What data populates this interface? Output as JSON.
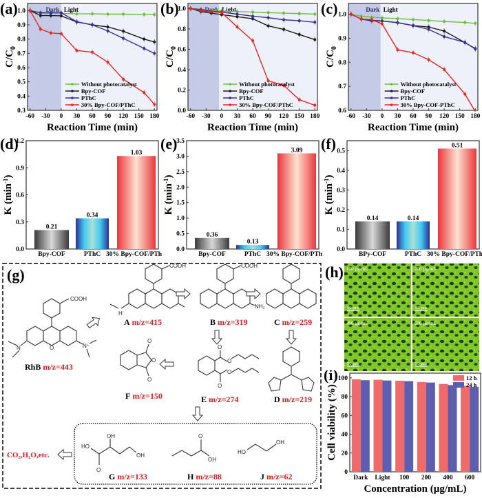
{
  "figure": {
    "panels": [
      "(a)",
      "(b)",
      "(c)",
      "(d)",
      "(e)",
      "(f)",
      "(g)",
      "(h)",
      "(i)"
    ]
  },
  "chart_data": [
    {
      "id": "a",
      "type": "line",
      "panel_label": "(a)",
      "xlabel": "Reaction Time (min)",
      "ylabel": "C/C0",
      "xlim": [
        -65,
        185
      ],
      "ylim": [
        0.3,
        1.05
      ],
      "xticks": [
        -60,
        -30,
        0,
        30,
        60,
        90,
        120,
        150,
        180
      ],
      "yticks": [
        0.3,
        0.4,
        0.5,
        0.6,
        0.7,
        0.8,
        0.9,
        1.0
      ],
      "ytick_decimals": 1,
      "dark_region": [
        -65,
        0
      ],
      "region_labels": [
        "Dark",
        "Light"
      ],
      "legend_position": "bottom-right",
      "x": [
        -60,
        -40,
        -20,
        0,
        30,
        60,
        90,
        120,
        160,
        180
      ],
      "series": [
        {
          "name": "Without photocatalyst",
          "color": "#6cbf3c",
          "values": [
            1.0,
            0.98,
            0.98,
            0.98,
            0.977,
            0.977,
            0.975,
            0.975,
            0.973,
            0.972
          ]
        },
        {
          "name": "Bpy-COF",
          "color": "#1a1a1a",
          "values": [
            1.0,
            0.965,
            0.965,
            0.963,
            0.92,
            0.9,
            0.885,
            0.855,
            0.8,
            0.78
          ]
        },
        {
          "name": "PThC",
          "color": "#3b2a9a",
          "values": [
            1.0,
            0.985,
            0.985,
            0.985,
            0.922,
            0.9,
            0.857,
            0.805,
            0.735,
            0.7
          ]
        },
        {
          "name": "30% Bpy-COF/PThC",
          "color": "#e8251f",
          "values": [
            1.0,
            0.87,
            0.843,
            0.838,
            0.72,
            0.708,
            0.638,
            0.518,
            0.425,
            0.342
          ]
        }
      ]
    },
    {
      "id": "b",
      "type": "line",
      "panel_label": "(b)",
      "xlabel": "Reaction Time (min)",
      "ylabel": "C/C0",
      "xlim": [
        -65,
        185
      ],
      "ylim": [
        0.0,
        1.05
      ],
      "xticks": [
        -60,
        -30,
        0,
        30,
        60,
        90,
        120,
        150,
        180
      ],
      "yticks": [
        0.0,
        0.2,
        0.4,
        0.6,
        0.8,
        1.0
      ],
      "ytick_decimals": 1,
      "dark_region": [
        -65,
        -5
      ],
      "region_labels": [
        "Dark",
        "Light"
      ],
      "legend_position": "bottom-right",
      "x": [
        -60,
        -40,
        -20,
        0,
        30,
        60,
        90,
        120,
        150,
        180
      ],
      "series": [
        {
          "name": "Without photocatalyst",
          "color": "#6cbf3c",
          "values": [
            1.0,
            0.99,
            0.985,
            0.975,
            0.97,
            0.965,
            0.96,
            0.955,
            0.95,
            0.945
          ]
        },
        {
          "name": "Bpy-COF",
          "color": "#1a1a1a",
          "values": [
            1.0,
            0.97,
            0.955,
            0.94,
            0.92,
            0.9,
            0.83,
            0.795,
            0.745,
            0.695
          ]
        },
        {
          "name": "PThC",
          "color": "#3b2a9a",
          "values": [
            1.0,
            0.99,
            0.975,
            0.965,
            0.945,
            0.925,
            0.91,
            0.89,
            0.88,
            0.865
          ]
        },
        {
          "name": "30% Bpy-COF/PThC",
          "color": "#e8251f",
          "values": [
            1.0,
            0.98,
            0.97,
            0.96,
            0.82,
            0.685,
            0.29,
            0.245,
            0.105,
            0.05
          ]
        }
      ]
    },
    {
      "id": "c",
      "type": "line",
      "panel_label": "(c)",
      "xlabel": "Reaction Time (min)",
      "ylabel": "C/C0",
      "xlim": [
        -65,
        185
      ],
      "ylim": [
        0.6,
        1.045
      ],
      "xticks": [
        -60,
        -30,
        0,
        30,
        60,
        90,
        120,
        150,
        180
      ],
      "yticks": [
        0.6,
        0.7,
        0.8,
        0.9,
        1.0
      ],
      "ytick_decimals": 1,
      "dark_region": [
        -65,
        -3
      ],
      "region_labels": [
        "Dark",
        "Light"
      ],
      "legend_position": "bottom-right",
      "x": [
        -60,
        -40,
        -20,
        0,
        30,
        60,
        90,
        120,
        160,
        180
      ],
      "series": [
        {
          "name": "Without photocatalyst",
          "color": "#6cbf3c",
          "values": [
            1.0,
            0.992,
            0.988,
            0.985,
            0.982,
            0.978,
            0.974,
            0.97,
            0.966,
            0.962
          ]
        },
        {
          "name": "Bpy-COF",
          "color": "#1a1a1a",
          "values": [
            1.0,
            0.98,
            0.975,
            0.972,
            0.965,
            0.953,
            0.947,
            0.93,
            0.882,
            0.857
          ]
        },
        {
          "name": "PThC",
          "color": "#3b2a9a",
          "values": [
            1.0,
            0.98,
            0.972,
            0.972,
            0.965,
            0.953,
            0.937,
            0.907,
            0.883,
            0.855
          ]
        },
        {
          "name": "30% Bpy-COF-PThC",
          "color": "#e8251f",
          "values": [
            1.0,
            0.98,
            0.978,
            0.96,
            0.852,
            0.84,
            0.811,
            0.77,
            0.668,
            0.595
          ]
        }
      ]
    },
    {
      "id": "d",
      "type": "bar",
      "panel_label": "(d)",
      "ylabel": "K (min-1)",
      "ylim": [
        0,
        1.2
      ],
      "yticks": [
        0.0,
        0.3,
        0.6,
        0.9,
        1.2
      ],
      "ytick_decimals": 1,
      "categories": [
        "Bpy-COF",
        "PThC",
        "30% Bpy-COF/PThC"
      ],
      "values": [
        0.21,
        0.34,
        1.03
      ],
      "data_labels": [
        "0.21",
        "0.34",
        "1.03"
      ]
    },
    {
      "id": "e",
      "type": "bar",
      "panel_label": "(e)",
      "ylabel": "K (min-1)",
      "ylim": [
        0,
        3.5
      ],
      "yticks": [
        0.0,
        0.5,
        1.0,
        1.5,
        2.0,
        2.5,
        3.0,
        3.5
      ],
      "ytick_decimals": 1,
      "categories": [
        "Bpy-COF",
        "PThC",
        "30% Bpy-COF/PThC"
      ],
      "values": [
        0.36,
        0.13,
        3.09
      ],
      "data_labels": [
        "0.36",
        "0.13",
        "3.09"
      ]
    },
    {
      "id": "f",
      "type": "bar",
      "panel_label": "(f)",
      "ylabel": "K (min-1)",
      "ylim": [
        0,
        0.55
      ],
      "yticks": [
        0.0,
        0.1,
        0.2,
        0.3,
        0.4,
        0.5
      ],
      "ytick_decimals": 1,
      "categories": [
        "BPy-COF",
        "PThC",
        "30% Bpy-COF/PThC"
      ],
      "values": [
        0.14,
        0.14,
        0.51
      ],
      "data_labels": [
        "0.14",
        "0.14",
        "0.51"
      ]
    },
    {
      "id": "i",
      "type": "bar",
      "panel_label": "(i)",
      "xlabel": "Concentration (µg/mL)",
      "ylabel": "Cell viability (%)",
      "ylim": [
        0,
        105
      ],
      "yticks": [
        0,
        20,
        40,
        60,
        80,
        100
      ],
      "ytick_decimals": 0,
      "legend_position": "top-right",
      "categories": [
        "Dark",
        "Light",
        "100",
        "200",
        "400",
        "600"
      ],
      "series": [
        {
          "name": "12 h",
          "color": "#ee6b6b",
          "values": [
            98.5,
            98,
            97,
            95.5,
            93.5,
            91.5
          ]
        },
        {
          "name": "24 h",
          "color": "#5d5fae",
          "values": [
            97.5,
            97.2,
            96.5,
            95,
            92.3,
            90.5
          ]
        }
      ]
    }
  ],
  "scheme_g": {
    "label": "(g)",
    "compounds": [
      {
        "id": "RhB",
        "name": "RhB",
        "mz": "m/z=443"
      },
      {
        "id": "A",
        "name": "A",
        "mz": "m/z=415"
      },
      {
        "id": "B",
        "name": "B",
        "mz": "m/z=319"
      },
      {
        "id": "C",
        "name": "C",
        "mz": "m/z=259"
      },
      {
        "id": "D",
        "name": "D",
        "mz": "m/z=219"
      },
      {
        "id": "E",
        "name": "E",
        "mz": "m/z=274"
      },
      {
        "id": "F",
        "name": "F",
        "mz": "m/z=150"
      },
      {
        "id": "G",
        "name": "G",
        "mz": "m/z=133"
      },
      {
        "id": "H",
        "name": "H",
        "mz": "m/z=88"
      },
      {
        "id": "J",
        "name": "J",
        "mz": "m/z=62"
      }
    ],
    "groups": {
      "cooh": "COOH",
      "nh2": "NH₂",
      "oh": "OH",
      "ho": "HO",
      "o": "O",
      "n": "N",
      "nplus": "N⁺",
      "h": "H"
    },
    "final_products": "CO₂,H₂O,etc."
  },
  "micrographs_h": {
    "label": "(h)",
    "images": [
      {
        "concentration": "100 µg/mL",
        "scale": "50 µm"
      },
      {
        "concentration": "200 µg/mL",
        "scale": "50 µm"
      },
      {
        "concentration": "400 µg/mL",
        "scale": "50 µm"
      },
      {
        "concentration": "600 µg/mL",
        "scale": "50 µm"
      }
    ]
  }
}
